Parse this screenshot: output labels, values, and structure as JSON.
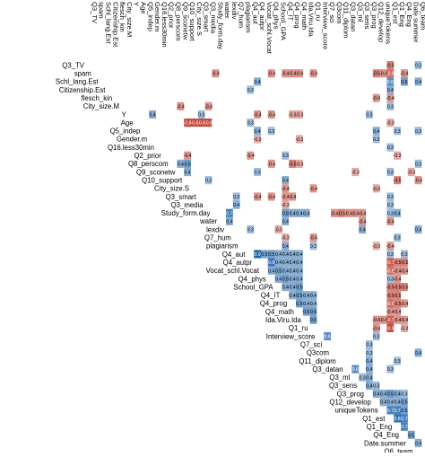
{
  "chart_data": {
    "type": "heatmap",
    "subtype": "upper-triangular correlation matrix (lower triangle blank, diagonal labels)",
    "variables": [
      "Q3_TV",
      "spam",
      "Schl_lang.Est",
      "Citizenship.Est",
      "flesch_kin",
      "City_size.M",
      "Y",
      "Age",
      "Q5_indep",
      "Gender.m",
      "Q16.less30min",
      "Q2_prior",
      "Q8_perscom",
      "Q9_sconetw",
      "Q10_support",
      "City_size.S",
      "Q3_smart",
      "Q3_media",
      "Study_form.day",
      "water",
      "lexdiv",
      "Q7_hum",
      "plagiarism",
      "Q4_aut",
      "Q4_autpr",
      "Vocat_schl.Vocat",
      "Q4_phys",
      "School_GPA",
      "Q4_IT",
      "Q4_prog",
      "Q4_math",
      "Ida.Viru.Ida",
      "Q1_ru",
      "Interview_score",
      "Q7_sci",
      "Q3com",
      "Q11_diplom",
      "Q3_datan",
      "Q3_ml",
      "Q3_sens",
      "Q3_prog",
      "Q12_develop",
      "uniqueTokens",
      "Q1_est",
      "Q1_Eng",
      "Q4_Eng",
      "Date.summer",
      "Q6_team"
    ],
    "column_labels": [
      "Q3_TV",
      "spam",
      "Schl_lang.Est",
      "Citizenship.Est",
      "flesch_kin",
      "City_size.M",
      "Y",
      "Age",
      "Q5_indep",
      "Gender.m",
      "Q16.less30min",
      "Q2_prior",
      "Q8_perscom",
      "Q9_sconetw",
      "Q10_support",
      "City_size.S",
      "Q3_smart",
      "Q3_media",
      "Study_form.day",
      "water",
      "lexdiv",
      "Q7_hum",
      "plagiarism",
      "Q4_aut",
      "Q4_autpr",
      "Vocat_schl.Vocat",
      "Q4_phys",
      "School_GPA",
      "Q4_IT",
      "Q4_prog",
      "Q4_math",
      "Ida.Viru.Ida",
      "Q1_ru",
      "Interview_score",
      "Q7_sci",
      "Q3com",
      "Q11_diplom",
      "Q3_datan",
      "Q3_ml",
      "Q3_sens",
      "Q3_prog",
      "Q12_develop",
      "uniqueTokens",
      "Q1_est",
      "Q1_Eng",
      "Q4_Eng",
      "Date.summer",
      "Q6_team"
    ],
    "row_labels": [
      "Q3_TV",
      "spam",
      "Schl_lang.Est",
      "Citizenship.Est",
      "flesch_kin",
      "City_size.M",
      "Y",
      "Age",
      "Q5_indep",
      "Gender.m",
      "Q16.less30min",
      "Q2_prior",
      "Q3_smart",
      "Q8_perscom",
      "Q9_sconetw",
      "Q10_support",
      "City_size.S",
      "Q3_media",
      "Study_form.day",
      "water",
      "lexdiv",
      "Q7_hum",
      "plagiarism",
      "Q4_aut",
      "Q4_autpr",
      "Vocat_schl.Vocat",
      "Q4_phys",
      "School_GPA",
      "Q4_IT",
      "Q4_prog",
      "Q4_math",
      "Ida.Viru.Ida",
      "Q1_ru",
      "Interview_score",
      "Q7_sci",
      "Q3com",
      "Q11_diplom",
      "Q3_datan",
      "Q3_ml",
      "Q3_sens",
      "Q3_prog",
      "Q12_develop",
      "uniqueTokens",
      "Q1_est",
      "Q1_Eng",
      "Q4_Eng",
      "Date.summer",
      "Q6_team"
    ],
    "cells": [
      {
        "r": "Q3_TV",
        "c": "Q6_team",
        "v": 0.3
      },
      {
        "r": "Q3_TV",
        "c": "Q1_est",
        "v": -0.5
      },
      {
        "r": "spam",
        "c": "Study_form.day",
        "v": -0.4
      },
      {
        "r": "spam",
        "c": "Q4_phys",
        "v": -0.4
      },
      {
        "r": "spam",
        "c": "Q4_IT",
        "v": -0.4
      },
      {
        "r": "spam",
        "c": "Q4_prog",
        "v": -0.4
      },
      {
        "r": "spam",
        "c": "Q4_math",
        "v": -0.4
      },
      {
        "r": "spam",
        "c": "Q1_ru",
        "v": -0.4
      },
      {
        "r": "spam",
        "c": "Q12_develop",
        "v": -0.5
      },
      {
        "r": "spam",
        "c": "uniqueTokens",
        "v": -0.4
      },
      {
        "r": "spam",
        "c": "Q1_est",
        "v": -0.6
      },
      {
        "r": "spam",
        "c": "Q4_Eng",
        "v": -0.4
      },
      {
        "r": "Schl_lang.Est",
        "c": "Q4_autpr",
        "v": 0.4
      },
      {
        "r": "Schl_lang.Est",
        "c": "Q1_est",
        "v": 0.6
      },
      {
        "r": "Schl_lang.Est",
        "c": "Q4_Eng",
        "v": 0.5
      },
      {
        "r": "Schl_lang.Est",
        "c": "Q6_team",
        "v": 0.4
      },
      {
        "r": "Citizenship.Est",
        "c": "Q4_aut",
        "v": 0.3
      },
      {
        "r": "Citizenship.Est",
        "c": "Q1_est",
        "v": 0.4
      },
      {
        "r": "flesch_kin",
        "c": "Q12_develop",
        "v": -0.4
      },
      {
        "r": "flesch_kin",
        "c": "Q1_est",
        "v": -0.4
      },
      {
        "r": "City_size.M",
        "c": "Q9_sconetw",
        "v": -0.4
      },
      {
        "r": "City_size.M",
        "c": "Q3_media",
        "v": -0.4
      },
      {
        "r": "City_size.M",
        "c": "Q1_est",
        "v": 0.3
      },
      {
        "r": "Y",
        "c": "Gender.m",
        "v": 0.4
      },
      {
        "r": "Y",
        "c": "Q3_smart",
        "v": 0.3
      },
      {
        "r": "Y",
        "c": "Q4_autpr",
        "v": -0.4
      },
      {
        "r": "Y",
        "c": "Q4_phys",
        "v": -0.4
      },
      {
        "r": "Y",
        "c": "Q4_prog",
        "v": -0.3
      },
      {
        "r": "Y",
        "c": "Q4_math",
        "v": -0.3
      },
      {
        "r": "Y",
        "c": "Q3_prog",
        "v": 0.3
      },
      {
        "r": "Age",
        "c": "Q10_support",
        "v": -0.8
      },
      {
        "r": "Age",
        "c": "City_size.S",
        "v": -0.8
      },
      {
        "r": "Age",
        "c": "Q3_smart",
        "v": -0.8
      },
      {
        "r": "Age",
        "c": "Q3_media",
        "v": -0.8
      },
      {
        "r": "Age",
        "c": "Q4_aut",
        "v": 0.3
      },
      {
        "r": "Age",
        "c": "Q1_est",
        "v": -0.3
      },
      {
        "r": "Q5_indep",
        "c": "Q4_autpr",
        "v": 0.4
      },
      {
        "r": "Q5_indep",
        "c": "Q4_phys",
        "v": 0.3
      },
      {
        "r": "Q5_indep",
        "c": "Q12_develop",
        "v": 0.4
      },
      {
        "r": "Q5_indep",
        "c": "Q1_Eng",
        "v": 0.3
      },
      {
        "r": "Q5_indep",
        "c": "Q6_team",
        "v": 0.3
      },
      {
        "r": "Gender.m",
        "c": "Q4_autpr",
        "v": -0.3
      },
      {
        "r": "Gender.m",
        "c": "Q4_math",
        "v": -0.3
      },
      {
        "r": "Gender.m",
        "c": "Q12_develop",
        "v": 0.3
      },
      {
        "r": "Q16.less30min",
        "c": "Q1_est",
        "v": 0.3
      },
      {
        "r": "Q2_prior",
        "c": "Q10_support",
        "v": -0.4
      },
      {
        "r": "Q2_prior",
        "c": "Q4_aut",
        "v": -0.4
      },
      {
        "r": "Q2_prior",
        "c": "Q4_IT",
        "v": 0.3
      },
      {
        "r": "Q2_prior",
        "c": "Q1_Eng",
        "v": -0.3
      },
      {
        "r": "Q3_smart",
        "c": "Q7_hum",
        "v": 0.3
      },
      {
        "r": "Q3_smart",
        "c": "Q4_autpr",
        "v": -0.4
      },
      {
        "r": "Q3_smart",
        "c": "Q4_phys",
        "v": -0.4
      },
      {
        "r": "Q3_smart",
        "c": "Q4_IT",
        "v": -0.4
      },
      {
        "r": "Q3_smart",
        "c": "Q4_prog",
        "v": -0.4
      },
      {
        "r": "Q3_smart",
        "c": "Q1_est",
        "v": 0.3
      },
      {
        "r": "Q8_perscom",
        "c": "Q9_sconetw",
        "v": 0.4
      },
      {
        "r": "Q8_perscom",
        "c": "Q10_support",
        "v": 0.5
      },
      {
        "r": "Q8_perscom",
        "c": "Q4_phys",
        "v": -0.4
      },
      {
        "r": "Q8_perscom",
        "c": "Q4_prog",
        "v": -0.5
      },
      {
        "r": "Q8_perscom",
        "c": "Q4_math",
        "v": -0.3
      },
      {
        "r": "Q8_perscom",
        "c": "Q6_team",
        "v": 0.3
      },
      {
        "r": "Q9_sconetw",
        "c": "Q10_support",
        "v": 0.4
      },
      {
        "r": "Q9_sconetw",
        "c": "Q4_autpr",
        "v": 0.3
      },
      {
        "r": "Q9_sconetw",
        "c": "Q3_ml",
        "v": -0.3
      },
      {
        "r": "Q9_sconetw",
        "c": "Q1_est",
        "v": 0.3
      },
      {
        "r": "Q9_sconetw",
        "c": "Date.summer",
        "v": -0.3
      },
      {
        "r": "Q10_support",
        "c": "Q3_media",
        "v": 0.3
      },
      {
        "r": "Q10_support",
        "c": "Q4_IT",
        "v": 0.4
      },
      {
        "r": "Q10_support",
        "c": "Q1_Eng",
        "v": -0.5
      },
      {
        "r": "Q10_support",
        "c": "Q6_team",
        "v": -0.4
      },
      {
        "r": "City_size.S",
        "c": "Q4_IT",
        "v": -0.4
      },
      {
        "r": "City_size.S",
        "c": "Q1_ru",
        "v": -0.4
      },
      {
        "r": "City_size.S",
        "c": "Q12_develop",
        "v": -0.3
      },
      {
        "r": "Q3_media",
        "c": "Q7_hum",
        "v": 0.4
      },
      {
        "r": "Q3_media",
        "c": "Q4_IT",
        "v": -0.3
      },
      {
        "r": "Q3_media",
        "c": "Q1_est",
        "v": 0.3
      },
      {
        "r": "Study_form.day",
        "c": "lexdiv",
        "v": 0.7
      },
      {
        "r": "Study_form.day",
        "c": "Q4_IT",
        "v": 0.5
      },
      {
        "r": "Study_form.day",
        "c": "Q4_prog",
        "v": 0.4
      },
      {
        "r": "Study_form.day",
        "c": "Q4_math",
        "v": 0.4
      },
      {
        "r": "Study_form.day",
        "c": "Ida.Viru.Ida",
        "v": 0.4
      },
      {
        "r": "Study_form.day",
        "c": "Q3com",
        "v": -0.4
      },
      {
        "r": "Study_form.day",
        "c": "Q11_diplom",
        "v": -0.5
      },
      {
        "r": "Study_form.day",
        "c": "Q3_datan",
        "v": -0.4
      },
      {
        "r": "Study_form.day",
        "c": "Q3_ml",
        "v": -0.4
      },
      {
        "r": "Study_form.day",
        "c": "Q3_sens",
        "v": -0.4
      },
      {
        "r": "Study_form.day",
        "c": "Q1_est",
        "v": 0.3
      },
      {
        "r": "Study_form.day",
        "c": "Q1_Eng",
        "v": 0.4
      },
      {
        "r": "water",
        "c": "lexdiv",
        "v": 0.4
      },
      {
        "r": "water",
        "c": "Q4_IT",
        "v": 0.4
      },
      {
        "r": "water",
        "c": "Q3_sens",
        "v": -0.4
      },
      {
        "r": "water",
        "c": "Q1_est",
        "v": -0.4
      },
      {
        "r": "lexdiv",
        "c": "Q4_aut",
        "v": 0.3
      },
      {
        "r": "lexdiv",
        "c": "School_GPA",
        "v": -0.3
      },
      {
        "r": "lexdiv",
        "c": "Q3_sens",
        "v": 0.4
      },
      {
        "r": "lexdiv",
        "c": "Q6_team",
        "v": 0.4
      },
      {
        "r": "Q7_hum",
        "c": "Q4_IT",
        "v": -0.3
      },
      {
        "r": "Q7_hum",
        "c": "Q1_ru",
        "v": -0.4
      },
      {
        "r": "Q7_hum",
        "c": "Q1_Eng",
        "v": 0.3
      },
      {
        "r": "plagiarism",
        "c": "Q4_IT",
        "v": 0.4
      },
      {
        "r": "plagiarism",
        "c": "Q1_ru",
        "v": 0.3
      },
      {
        "r": "plagiarism",
        "c": "Q12_develop",
        "v": -0.3
      },
      {
        "r": "plagiarism",
        "c": "Q1_est",
        "v": -0.4
      },
      {
        "r": "Q4_aut",
        "c": "Q4_autpr",
        "v": 0.9
      },
      {
        "r": "Q4_aut",
        "c": "Vocat_schl.Vocat",
        "v": 0.5
      },
      {
        "r": "Q4_aut",
        "c": "Q4_phys",
        "v": 0.5
      },
      {
        "r": "Q4_aut",
        "c": "School_GPA",
        "v": 0.4
      },
      {
        "r": "Q4_aut",
        "c": "Q4_IT",
        "v": 0.4
      },
      {
        "r": "Q4_aut",
        "c": "Q4_prog",
        "v": 0.4
      },
      {
        "r": "Q4_aut",
        "c": "Q4_math",
        "v": 0.4
      },
      {
        "r": "Q4_aut",
        "c": "Q1_est",
        "v": 0.3
      },
      {
        "r": "Q4_aut",
        "c": "Q4_Eng",
        "v": 0.3
      },
      {
        "r": "Q4_autpr",
        "c": "Q4_phys",
        "v": 0.8
      },
      {
        "r": "Q4_autpr",
        "c": "School_GPA",
        "v": 0.4
      },
      {
        "r": "Q4_autpr",
        "c": "Q4_IT",
        "v": 0.4
      },
      {
        "r": "Q4_autpr",
        "c": "Q4_prog",
        "v": 0.4
      },
      {
        "r": "Q4_autpr",
        "c": "Q4_math",
        "v": 0.4
      },
      {
        "r": "Q4_autpr",
        "c": "Q1_est",
        "v": -0.7
      },
      {
        "r": "Q4_autpr",
        "c": "Q1_Eng",
        "v": -0.5
      },
      {
        "r": "Q4_autpr",
        "c": "Q4_Eng",
        "v": -0.5
      },
      {
        "r": "Vocat_schl.Vocat",
        "c": "Q4_phys",
        "v": 0.4
      },
      {
        "r": "Vocat_schl.Vocat",
        "c": "School_GPA",
        "v": 0.5
      },
      {
        "r": "Vocat_schl.Vocat",
        "c": "Q4_IT",
        "v": 0.4
      },
      {
        "r": "Vocat_schl.Vocat",
        "c": "Q4_prog",
        "v": 0.4
      },
      {
        "r": "Vocat_schl.Vocat",
        "c": "Q4_math",
        "v": 0.4
      },
      {
        "r": "Vocat_schl.Vocat",
        "c": "Q1_est",
        "v": -0.6
      },
      {
        "r": "Vocat_schl.Vocat",
        "c": "Q1_Eng",
        "v": -0.4
      },
      {
        "r": "Vocat_schl.Vocat",
        "c": "Q4_Eng",
        "v": -0.4
      },
      {
        "r": "Q4_phys",
        "c": "School_GPA",
        "v": 0.4
      },
      {
        "r": "Q4_phys",
        "c": "Q4_IT",
        "v": 0.5
      },
      {
        "r": "Q4_phys",
        "c": "Q4_prog",
        "v": 0.4
      },
      {
        "r": "Q4_phys",
        "c": "Q4_math",
        "v": 0.4
      },
      {
        "r": "Q4_phys",
        "c": "Q1_est",
        "v": 0.3
      },
      {
        "r": "Q4_phys",
        "c": "Q1_Eng",
        "v": -0.4
      },
      {
        "r": "School_GPA",
        "c": "Q4_IT",
        "v": 0.4
      },
      {
        "r": "School_GPA",
        "c": "Q4_prog",
        "v": 0.4
      },
      {
        "r": "School_GPA",
        "c": "Q4_math",
        "v": 0.5
      },
      {
        "r": "School_GPA",
        "c": "Q1_est",
        "v": -0.5
      },
      {
        "r": "School_GPA",
        "c": "Q1_Eng",
        "v": -0.5
      },
      {
        "r": "School_GPA",
        "c": "Q4_Eng",
        "v": -0.5
      },
      {
        "r": "Q4_IT",
        "c": "Q4_prog",
        "v": 0.4
      },
      {
        "r": "Q4_IT",
        "c": "Q4_math",
        "v": 0.5
      },
      {
        "r": "Q4_IT",
        "c": "Ida.Viru.Ida",
        "v": 0.4
      },
      {
        "r": "Q4_IT",
        "c": "Q1_ru",
        "v": 0.4
      },
      {
        "r": "Q4_IT",
        "c": "Q1_est",
        "v": -0.5
      },
      {
        "r": "Q4_IT",
        "c": "Q1_Eng",
        "v": -0.5
      },
      {
        "r": "Q4_prog",
        "c": "Q4_math",
        "v": 0.5
      },
      {
        "r": "Q4_prog",
        "c": "Ida.Viru.Ida",
        "v": 0.4
      },
      {
        "r": "Q4_prog",
        "c": "Q1_ru",
        "v": 0.4
      },
      {
        "r": "Q4_prog",
        "c": "Q1_est",
        "v": -0.6
      },
      {
        "r": "Q4_prog",
        "c": "Q1_Eng",
        "v": -0.5
      },
      {
        "r": "Q4_prog",
        "c": "Q4_Eng",
        "v": -0.4
      },
      {
        "r": "Q4_math",
        "c": "Ida.Viru.Ida",
        "v": 0.5
      },
      {
        "r": "Q4_math",
        "c": "Q1_ru",
        "v": 0.5
      },
      {
        "r": "Q4_math",
        "c": "Q1_est",
        "v": -0.4
      },
      {
        "r": "Q4_math",
        "c": "Q1_Eng",
        "v": -0.4
      },
      {
        "r": "Ida.Viru.Ida",
        "c": "Q1_ru",
        "v": 0.5
      },
      {
        "r": "Ida.Viru.Ida",
        "c": "Q12_develop",
        "v": -0.4
      },
      {
        "r": "Ida.Viru.Ida",
        "c": "uniqueTokens",
        "v": -0.4
      },
      {
        "r": "Ida.Viru.Ida",
        "c": "Q1_est",
        "v": -0.7
      },
      {
        "r": "Ida.Viru.Ida",
        "c": "Q1_Eng",
        "v": -0.4
      },
      {
        "r": "Ida.Viru.Ida",
        "c": "Q4_Eng",
        "v": -0.4
      },
      {
        "r": "Q1_ru",
        "c": "Q12_develop",
        "v": -0.4
      },
      {
        "r": "Q1_ru",
        "c": "Q1_est",
        "v": -0.8
      },
      {
        "r": "Q1_ru",
        "c": "Q4_Eng",
        "v": -0.3
      },
      {
        "r": "Interview_score",
        "c": "Q7_sci",
        "v": 0.6
      },
      {
        "r": "Interview_score",
        "c": "Q12_develop",
        "v": 0.3
      },
      {
        "r": "Q7_sci",
        "c": "Q3_prog",
        "v": 0.3
      },
      {
        "r": "Q3com",
        "c": "Q3_prog",
        "v": 0.3
      },
      {
        "r": "Q3com",
        "c": "Q6_team",
        "v": 0.4
      },
      {
        "r": "Q11_diplom",
        "c": "Q3_prog",
        "v": 0.4
      },
      {
        "r": "Q11_diplom",
        "c": "Q1_Eng",
        "v": 0.3
      },
      {
        "r": "Q3_datan",
        "c": "Q3_ml",
        "v": 0.6
      },
      {
        "r": "Q3_datan",
        "c": "Q3_prog",
        "v": 0.4
      },
      {
        "r": "Q3_datan",
        "c": "Q1_est",
        "v": 0.3
      },
      {
        "r": "Q3_ml",
        "c": "Q3_sens",
        "v": 0.3
      },
      {
        "r": "Q3_ml",
        "c": "Q3_prog",
        "v": 0.4
      },
      {
        "r": "Q3_sens",
        "c": "Q3_prog",
        "v": 0.4
      },
      {
        "r": "Q3_sens",
        "c": "Q12_develop",
        "v": 0.3
      },
      {
        "r": "Q3_prog",
        "c": "Q12_develop",
        "v": 0.4
      },
      {
        "r": "Q3_prog",
        "c": "uniqueTokens",
        "v": 0.4
      },
      {
        "r": "Q3_prog",
        "c": "Q1_est",
        "v": 0.5
      },
      {
        "r": "Q3_prog",
        "c": "Q1_Eng",
        "v": 0.4
      },
      {
        "r": "Q3_prog",
        "c": "Q4_Eng",
        "v": 0.3
      },
      {
        "r": "Q12_develop",
        "c": "uniqueTokens",
        "v": 0.4
      },
      {
        "r": "Q12_develop",
        "c": "Q1_est",
        "v": 0.4
      },
      {
        "r": "Q12_develop",
        "c": "Q1_Eng",
        "v": 0.4
      },
      {
        "r": "Q12_develop",
        "c": "Q4_Eng",
        "v": 0.5
      },
      {
        "r": "uniqueTokens",
        "c": "Q1_est",
        "v": 0.7
      },
      {
        "r": "uniqueTokens",
        "c": "Q1_Eng",
        "v": 0.7
      },
      {
        "r": "uniqueTokens",
        "c": "Q4_Eng",
        "v": 0.5
      },
      {
        "r": "Q1_est",
        "c": "Q1_Eng",
        "v": 0.8
      },
      {
        "r": "Q1_est",
        "c": "Q4_Eng",
        "v": 0.7
      },
      {
        "r": "Q1_Eng",
        "c": "Q4_Eng",
        "v": 0.7
      },
      {
        "r": "Q4_Eng",
        "c": "Date.summer",
        "v": 0.5
      },
      {
        "r": "Date.summer",
        "c": "Q6_team",
        "v": 0.4
      }
    ],
    "color_scale": {
      "negative": "#c0392b",
      "zero": "#ffffff",
      "positive": "#2166ac"
    },
    "value_range": [
      -1,
      1
    ],
    "grid": false,
    "legend": "none"
  }
}
